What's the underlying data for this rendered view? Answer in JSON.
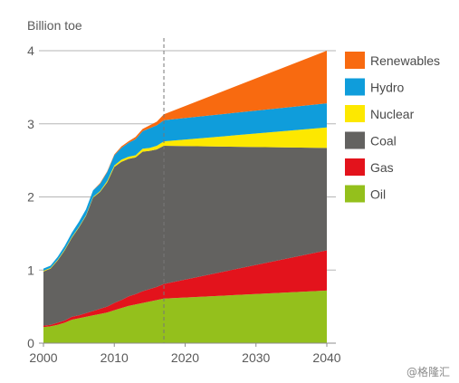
{
  "chart_data": {
    "type": "area",
    "stacked": true,
    "ylabel": "Billion toe",
    "xlim": [
      2000,
      2040
    ],
    "ylim": [
      0,
      4
    ],
    "x_ticks": [
      2000,
      2010,
      2020,
      2030,
      2040
    ],
    "y_ticks": [
      0,
      1,
      2,
      3,
      4
    ],
    "grid": "horizontal",
    "legend_position": "right",
    "projection_marker_x": 2017,
    "x": [
      2000,
      2001,
      2002,
      2003,
      2004,
      2005,
      2006,
      2007,
      2008,
      2009,
      2010,
      2011,
      2012,
      2013,
      2014,
      2015,
      2016,
      2017,
      2040
    ],
    "series": [
      {
        "name": "Oil",
        "color": "#94c01c",
        "values": [
          0.22,
          0.23,
          0.25,
          0.28,
          0.32,
          0.34,
          0.36,
          0.38,
          0.4,
          0.42,
          0.45,
          0.48,
          0.51,
          0.53,
          0.55,
          0.57,
          0.59,
          0.61,
          0.72
        ]
      },
      {
        "name": "Gas",
        "color": "#e3131c",
        "values": [
          0.02,
          0.02,
          0.03,
          0.03,
          0.04,
          0.04,
          0.05,
          0.06,
          0.07,
          0.08,
          0.1,
          0.11,
          0.13,
          0.14,
          0.16,
          0.17,
          0.18,
          0.2,
          0.55
        ]
      },
      {
        "name": "Coal",
        "color": "#636260",
        "values": [
          0.74,
          0.77,
          0.85,
          0.96,
          1.08,
          1.2,
          1.33,
          1.55,
          1.6,
          1.7,
          1.86,
          1.89,
          1.88,
          1.87,
          1.91,
          1.89,
          1.88,
          1.89,
          1.4
        ]
      },
      {
        "name": "Nuclear",
        "color": "#fde800",
        "values": [
          0.01,
          0.01,
          0.01,
          0.01,
          0.01,
          0.01,
          0.01,
          0.01,
          0.01,
          0.02,
          0.02,
          0.03,
          0.03,
          0.03,
          0.04,
          0.04,
          0.05,
          0.06,
          0.28
        ]
      },
      {
        "name": "Hydro",
        "color": "#0f9ddb",
        "values": [
          0.03,
          0.03,
          0.04,
          0.05,
          0.06,
          0.07,
          0.08,
          0.09,
          0.1,
          0.12,
          0.14,
          0.16,
          0.19,
          0.22,
          0.24,
          0.27,
          0.28,
          0.29,
          0.33
        ]
      },
      {
        "name": "Renewables",
        "color": "#f86a10",
        "values": [
          0.0,
          0.0,
          0.0,
          0.0,
          0.0,
          0.0,
          0.0,
          0.0,
          0.01,
          0.01,
          0.01,
          0.02,
          0.02,
          0.03,
          0.03,
          0.04,
          0.05,
          0.08,
          0.72
        ]
      }
    ],
    "legend_order": [
      "Renewables",
      "Hydro",
      "Nuclear",
      "Coal",
      "Gas",
      "Oil"
    ]
  },
  "colors": {
    "axis": "#8c8c8c",
    "grid": "#b5b5b5",
    "marker": "#777777"
  },
  "watermark": "@格隆汇"
}
